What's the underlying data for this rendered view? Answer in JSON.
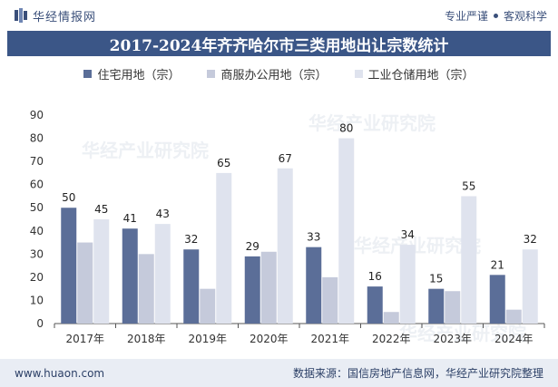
{
  "header": {
    "brand": "华经情报网",
    "slogan_left": "专业严谨",
    "slogan_right": "客观科学"
  },
  "watermark": {
    "text": "华经产业研究院"
  },
  "chart_data": {
    "type": "bar",
    "title": "2017-2024年齐齐哈尔市三类用地出让宗数统计",
    "categories": [
      "2017年",
      "2018年",
      "2019年",
      "2020年",
      "2021年",
      "2022年",
      "2023年",
      "2024年"
    ],
    "series": [
      {
        "name": "住宅用地（宗）",
        "values": [
          50,
          41,
          32,
          29,
          33,
          16,
          15,
          21
        ],
        "color": "#5b6e98",
        "labeled": true
      },
      {
        "name": "商服办公用地（宗）",
        "values": [
          35,
          30,
          15,
          31,
          20,
          5,
          14,
          6
        ],
        "color": "#c5cadb",
        "labeled": false
      },
      {
        "name": "工业仓储用地（宗）",
        "values": [
          45,
          43,
          65,
          67,
          80,
          34,
          55,
          32
        ],
        "color": "#dfe3ee",
        "labeled": true
      }
    ],
    "ylim": [
      0,
      90
    ],
    "yticks": [
      "0",
      "10",
      "20",
      "30",
      "40",
      "50",
      "60",
      "70",
      "80",
      "90"
    ],
    "xlabel": "",
    "ylabel": "",
    "grid": false,
    "legend": "top-center"
  },
  "footer": {
    "website": "www.huaon.com",
    "source": "数据来源：国信房地产信息网，华经产业研究院整理"
  }
}
